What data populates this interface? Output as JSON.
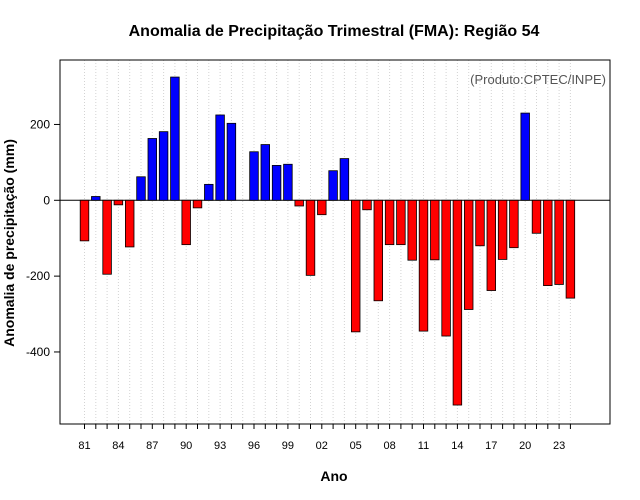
{
  "chart_data": {
    "type": "bar",
    "title": "Anomalia de Precipitação Trimestral (FMA): Região 54",
    "xlabel": "Ano",
    "ylabel": "Anomalia de precipitação (mm)",
    "credit": "(Produto:CPTEC/INPE)",
    "ylim": [
      -590,
      370
    ],
    "yticks": [
      -400,
      -200,
      0,
      200
    ],
    "grid": "vertical-dotted",
    "positive_color": "#0000ff",
    "negative_color": "#ff0000",
    "categories": [
      "1981",
      "1982",
      "1983",
      "1984",
      "1985",
      "1986",
      "1987",
      "1988",
      "1989",
      "1990",
      "1991",
      "1992",
      "1993",
      "1994",
      "1995",
      "1996",
      "1997",
      "1998",
      "1999",
      "2000",
      "2001",
      "2002",
      "2003",
      "2004",
      "2005",
      "2006",
      "2007",
      "2008",
      "2009",
      "2010",
      "2011",
      "2012",
      "2013",
      "2014",
      "2015",
      "2016",
      "2017",
      "2018",
      "2019",
      "2020",
      "2021",
      "2022",
      "2023",
      "2024"
    ],
    "xtick_labels": [
      {
        "category": "1981",
        "label": "81"
      },
      {
        "category": "1984",
        "label": "84"
      },
      {
        "category": "1987",
        "label": "87"
      },
      {
        "category": "1990",
        "label": "90"
      },
      {
        "category": "1993",
        "label": "93"
      },
      {
        "category": "1996",
        "label": "96"
      },
      {
        "category": "1999",
        "label": "99"
      },
      {
        "category": "2002",
        "label": "02"
      },
      {
        "category": "2005",
        "label": "05"
      },
      {
        "category": "2008",
        "label": "08"
      },
      {
        "category": "2011",
        "label": "11"
      },
      {
        "category": "2014",
        "label": "14"
      },
      {
        "category": "2017",
        "label": "17"
      },
      {
        "category": "2020",
        "label": "20"
      },
      {
        "category": "2023",
        "label": "23"
      }
    ],
    "values": [
      -107,
      10,
      -195,
      -12,
      -123,
      62,
      163,
      181,
      325,
      -117,
      -20,
      42,
      225,
      203,
      0,
      128,
      147,
      92,
      95,
      -15,
      -198,
      -38,
      78,
      110,
      -347,
      -25,
      -265,
      -117,
      -117,
      -158,
      -345,
      -157,
      -358,
      -540,
      -288,
      -120,
      -238,
      -156,
      -125,
      230,
      -87,
      -225,
      -222,
      -258
    ]
  }
}
